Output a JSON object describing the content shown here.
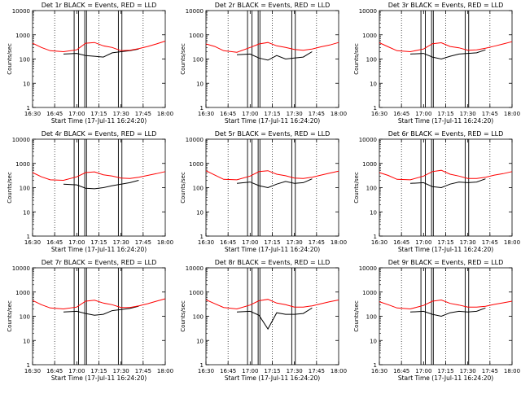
{
  "xticks": [
    "16:30",
    "16:45",
    "17:00",
    "17:15",
    "17:30",
    "17:45",
    "18:00"
  ],
  "yticks": [
    "1",
    "10",
    "100",
    "1000",
    "10000"
  ],
  "ylabel": "Counts/sec",
  "xlabel": "Start Time (17-Jul-11 16:24:20)",
  "colors": {
    "events": "#000000",
    "lld": "#ff0000"
  },
  "chart_data": [
    {
      "title": "Det 1r BLACK = Events, RED = LLD",
      "type": "line",
      "xlabel": "Start Time (17-Jul-11 16:24:20)",
      "ylabel": "Counts/sec",
      "yscale": "log",
      "ylim": [
        1,
        10000
      ],
      "xlim": [
        "16:30",
        "18:00"
      ],
      "series": [
        {
          "name": "Events",
          "color": "#000000",
          "x": [
            16.7,
            16.85,
            17.0,
            17.1,
            17.2,
            17.3,
            17.4,
            17.5,
            17.6,
            17.7,
            17.8
          ],
          "y": [
            null,
            160,
            170,
            140,
            130,
            120,
            180,
            200,
            220,
            260,
            null
          ]
        },
        {
          "name": "LLD",
          "color": "#ff0000",
          "x": [
            16.5,
            16.6,
            16.7,
            16.85,
            17.0,
            17.1,
            17.2,
            17.3,
            17.4,
            17.5,
            17.6,
            17.7,
            17.8,
            17.9,
            18.0
          ],
          "y": [
            450,
            300,
            220,
            200,
            240,
            450,
            480,
            350,
            300,
            220,
            230,
            270,
            330,
            420,
            550
          ]
        }
      ]
    },
    {
      "title": "Det 2r BLACK = Events, RED = LLD",
      "type": "line",
      "xlabel": "Start Time (17-Jul-11 16:24:20)",
      "ylabel": "Counts/sec",
      "yscale": "log",
      "ylim": [
        1,
        10000
      ],
      "xlim": [
        "16:30",
        "18:00"
      ],
      "series": [
        {
          "name": "Events",
          "color": "#000000",
          "x": [
            16.7,
            16.85,
            17.0,
            17.1,
            17.2,
            17.3,
            17.4,
            17.5,
            17.6,
            17.7,
            17.8
          ],
          "y": [
            null,
            150,
            160,
            110,
            90,
            140,
            100,
            110,
            120,
            200,
            null
          ]
        },
        {
          "name": "LLD",
          "color": "#ff0000",
          "x": [
            16.5,
            16.6,
            16.7,
            16.85,
            17.0,
            17.1,
            17.2,
            17.3,
            17.4,
            17.5,
            17.6,
            17.7,
            17.8,
            17.9,
            18.0
          ],
          "y": [
            420,
            330,
            220,
            190,
            300,
            420,
            480,
            350,
            300,
            250,
            230,
            260,
            320,
            380,
            480
          ]
        }
      ]
    },
    {
      "title": "Det 3r BLACK = Events, RED = LLD",
      "type": "line",
      "xlabel": "Start Time (17-Jul-11 16:24:20)",
      "ylabel": "Counts/sec",
      "yscale": "log",
      "ylim": [
        1,
        10000
      ],
      "xlim": [
        "16:30",
        "18:00"
      ],
      "series": [
        {
          "name": "Events",
          "color": "#000000",
          "x": [
            16.7,
            16.85,
            17.0,
            17.1,
            17.2,
            17.3,
            17.4,
            17.5,
            17.6,
            17.7,
            17.8
          ],
          "y": [
            null,
            160,
            170,
            120,
            100,
            130,
            160,
            170,
            180,
            240,
            null
          ]
        },
        {
          "name": "LLD",
          "color": "#ff0000",
          "x": [
            16.5,
            16.6,
            16.7,
            16.85,
            17.0,
            17.1,
            17.2,
            17.3,
            17.4,
            17.5,
            17.6,
            17.7,
            17.8,
            17.9,
            18.0
          ],
          "y": [
            470,
            320,
            220,
            200,
            260,
            430,
            470,
            330,
            290,
            230,
            240,
            280,
            340,
            420,
            520
          ]
        }
      ]
    },
    {
      "title": "Det 4r BLACK = Events, RED = LLD",
      "type": "line",
      "xlabel": "Start Time (17-Jul-11 16:24:20)",
      "ylabel": "Counts/sec",
      "yscale": "log",
      "ylim": [
        1,
        10000
      ],
      "xlim": [
        "16:30",
        "18:00"
      ],
      "series": [
        {
          "name": "Events",
          "color": "#000000",
          "x": [
            16.7,
            16.85,
            17.0,
            17.1,
            17.2,
            17.3,
            17.4,
            17.5,
            17.6,
            17.7,
            17.8
          ],
          "y": [
            null,
            140,
            130,
            95,
            90,
            100,
            120,
            140,
            160,
            200,
            null
          ]
        },
        {
          "name": "LLD",
          "color": "#ff0000",
          "x": [
            16.5,
            16.6,
            16.7,
            16.85,
            17.0,
            17.1,
            17.2,
            17.3,
            17.4,
            17.5,
            17.6,
            17.7,
            17.8,
            17.9,
            18.0
          ],
          "y": [
            420,
            280,
            210,
            200,
            280,
            420,
            450,
            340,
            300,
            250,
            240,
            270,
            320,
            380,
            460
          ]
        }
      ]
    },
    {
      "title": "Det 5r BLACK = Events, RED = LLD",
      "type": "line",
      "xlabel": "Start Time (17-Jul-11 16:24:20)",
      "ylabel": "Counts/sec",
      "yscale": "log",
      "ylim": [
        1,
        10000
      ],
      "xlim": [
        "16:30",
        "18:00"
      ],
      "series": [
        {
          "name": "Events",
          "color": "#000000",
          "x": [
            16.7,
            16.85,
            17.0,
            17.1,
            17.2,
            17.3,
            17.4,
            17.5,
            17.6,
            17.7,
            17.8
          ],
          "y": [
            null,
            150,
            170,
            120,
            100,
            140,
            180,
            150,
            160,
            230,
            null
          ]
        },
        {
          "name": "LLD",
          "color": "#ff0000",
          "x": [
            16.5,
            16.6,
            16.7,
            16.85,
            17.0,
            17.1,
            17.2,
            17.3,
            17.4,
            17.5,
            17.6,
            17.7,
            17.8,
            17.9,
            18.0
          ],
          "y": [
            500,
            330,
            220,
            210,
            300,
            460,
            500,
            360,
            310,
            250,
            240,
            270,
            330,
            400,
            480
          ]
        }
      ]
    },
    {
      "title": "Det 6r BLACK = Events, RED = LLD",
      "type": "line",
      "xlabel": "Start Time (17-Jul-11 16:24:20)",
      "ylabel": "Counts/sec",
      "yscale": "log",
      "ylim": [
        1,
        10000
      ],
      "xlim": [
        "16:30",
        "18:00"
      ],
      "series": [
        {
          "name": "Events",
          "color": "#000000",
          "x": [
            16.7,
            16.85,
            17.0,
            17.1,
            17.2,
            17.3,
            17.4,
            17.5,
            17.6,
            17.7,
            17.8
          ],
          "y": [
            null,
            150,
            160,
            110,
            100,
            140,
            170,
            160,
            170,
            230,
            null
          ]
        },
        {
          "name": "LLD",
          "color": "#ff0000",
          "x": [
            16.5,
            16.6,
            16.7,
            16.85,
            17.0,
            17.1,
            17.2,
            17.3,
            17.4,
            17.5,
            17.6,
            17.7,
            17.8,
            17.9,
            18.0
          ],
          "y": [
            420,
            320,
            220,
            210,
            300,
            460,
            520,
            360,
            300,
            240,
            240,
            270,
            330,
            380,
            460
          ]
        }
      ]
    },
    {
      "title": "Det 7r BLACK = Events, RED = LLD",
      "type": "line",
      "xlabel": "Start Time (17-Jul-11 16:24:20)",
      "ylabel": "Counts/sec",
      "yscale": "log",
      "ylim": [
        1,
        10000
      ],
      "xlim": [
        "16:30",
        "18:00"
      ],
      "series": [
        {
          "name": "Events",
          "color": "#000000",
          "x": [
            16.7,
            16.85,
            17.0,
            17.1,
            17.2,
            17.3,
            17.4,
            17.5,
            17.6,
            17.7,
            17.8
          ],
          "y": [
            null,
            150,
            160,
            130,
            110,
            120,
            170,
            190,
            210,
            260,
            null
          ]
        },
        {
          "name": "LLD",
          "color": "#ff0000",
          "x": [
            16.5,
            16.6,
            16.7,
            16.85,
            17.0,
            17.1,
            17.2,
            17.3,
            17.4,
            17.5,
            17.6,
            17.7,
            17.8,
            17.9,
            18.0
          ],
          "y": [
            450,
            300,
            220,
            200,
            240,
            420,
            460,
            350,
            300,
            230,
            230,
            270,
            330,
            420,
            530
          ]
        }
      ]
    },
    {
      "title": "Det 8r BLACK = Events, RED = LLD",
      "type": "line",
      "xlabel": "Start Time (17-Jul-11 16:24:20)",
      "ylabel": "Counts/sec",
      "yscale": "log",
      "ylim": [
        1,
        10000
      ],
      "xlim": [
        "16:30",
        "18:00"
      ],
      "series": [
        {
          "name": "Events",
          "color": "#000000",
          "x": [
            16.7,
            16.85,
            17.0,
            17.1,
            17.2,
            17.3,
            17.4,
            17.5,
            17.6,
            17.7,
            17.8
          ],
          "y": [
            null,
            150,
            160,
            110,
            30,
            140,
            120,
            120,
            130,
            220,
            null
          ]
        },
        {
          "name": "LLD",
          "color": "#ff0000",
          "x": [
            16.5,
            16.6,
            16.7,
            16.85,
            17.0,
            17.1,
            17.2,
            17.3,
            17.4,
            17.5,
            17.6,
            17.7,
            17.8,
            17.9,
            18.0
          ],
          "y": [
            480,
            330,
            230,
            200,
            290,
            440,
            500,
            350,
            300,
            240,
            240,
            270,
            330,
            400,
            470
          ]
        }
      ]
    },
    {
      "title": "Det 9r BLACK = Events, RED = LLD",
      "type": "line",
      "xlabel": "Start Time (17-Jul-11 16:24:20)",
      "ylabel": "Counts/sec",
      "yscale": "log",
      "ylim": [
        1,
        10000
      ],
      "xlim": [
        "16:30",
        "18:00"
      ],
      "series": [
        {
          "name": "Events",
          "color": "#000000",
          "x": [
            16.7,
            16.85,
            17.0,
            17.1,
            17.2,
            17.3,
            17.4,
            17.5,
            17.6,
            17.7,
            17.8
          ],
          "y": [
            null,
            150,
            160,
            120,
            100,
            140,
            160,
            150,
            160,
            220,
            null
          ]
        },
        {
          "name": "LLD",
          "color": "#ff0000",
          "x": [
            16.5,
            16.6,
            16.7,
            16.85,
            17.0,
            17.1,
            17.2,
            17.3,
            17.4,
            17.5,
            17.6,
            17.7,
            17.8,
            17.9,
            18.0
          ],
          "y": [
            400,
            300,
            220,
            200,
            280,
            420,
            470,
            340,
            290,
            240,
            240,
            260,
            310,
            360,
            420
          ]
        }
      ]
    }
  ]
}
